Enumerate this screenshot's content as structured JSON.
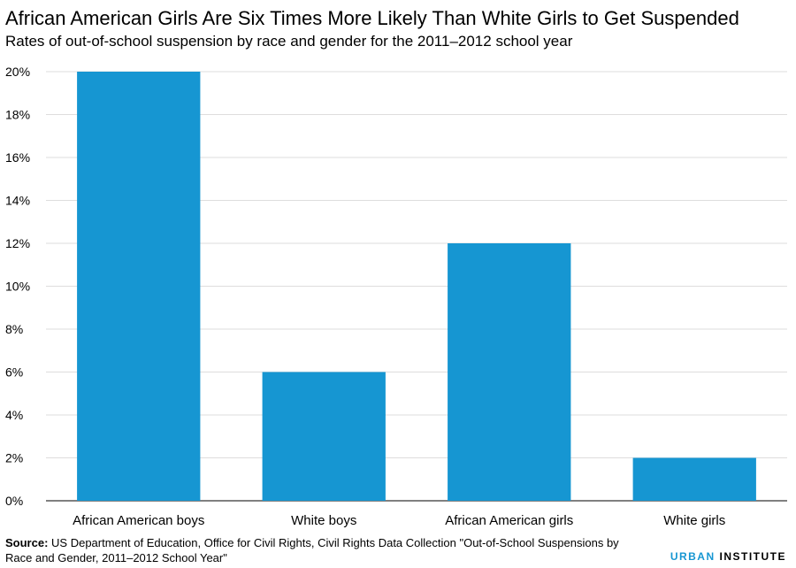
{
  "header": {
    "title": "African American Girls Are Six Times More Likely Than White Girls to Get Suspended",
    "subtitle": "Rates of out-of-school suspension by race and gender for the 2011–2012 school year"
  },
  "footer": {
    "source_label": "Source:",
    "source_text": "US Department of Education, Office for Civil Rights, Civil Rights Data Collection \"Out-of-School Suspensions by Race and Gender,  2011–2012 School Year\"",
    "brand_urban": "URBAN",
    "brand_institute": "INSTITUTE"
  },
  "colors": {
    "bar": "#1696d2",
    "grid": "#dedddd",
    "brand": "#1696d2"
  },
  "chart_data": {
    "type": "bar",
    "title": "African American Girls Are Six Times More Likely Than White Girls to Get Suspended",
    "subtitle": "Rates of out-of-school suspension by race and gender for the 2011–2012 school year",
    "categories": [
      "African American boys",
      "White boys",
      "African American girls",
      "White girls"
    ],
    "values": [
      20,
      6,
      12,
      2
    ],
    "unit": "%",
    "ylim": [
      0,
      20
    ],
    "yticks": [
      0,
      2,
      4,
      6,
      8,
      10,
      12,
      14,
      16,
      18,
      20
    ],
    "ytick_labels": [
      "0%",
      "2%",
      "4%",
      "6%",
      "8%",
      "10%",
      "12%",
      "14%",
      "16%",
      "18%",
      "20%"
    ],
    "grid": true,
    "legend": "none"
  }
}
